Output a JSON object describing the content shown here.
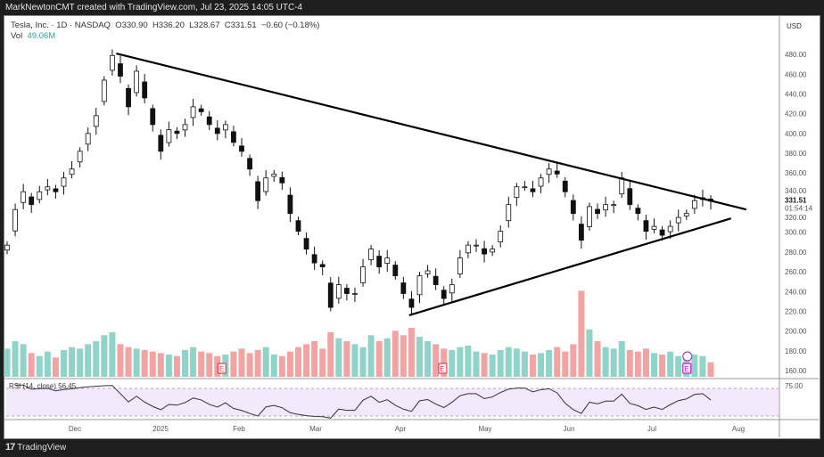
{
  "header": {
    "attribution": "MarkNewtonCMT created with TradingView.com, Jul 23, 2025 14:05 UTC-4"
  },
  "legend": {
    "symbol": "Tesla, Inc. · 1D · NASDAQ",
    "open": "O330.90",
    "high": "H336.20",
    "low": "L328.67",
    "close": "C331.51",
    "change": "−0.60 (−0.18%)",
    "vol_label": "Vol",
    "vol_value": "49.06M"
  },
  "footer": {
    "brand": "TradingView"
  },
  "chart_data": {
    "type": "candlestick",
    "currency": "USD",
    "ylim": [
      150,
      500
    ],
    "yticks": [
      160,
      180,
      200,
      220,
      240,
      260,
      280,
      300,
      320,
      340,
      360,
      380,
      400,
      420,
      440,
      460,
      480
    ],
    "last_price": "331.51",
    "countdown": "01:54:14",
    "xticks": [
      "Dec",
      "2025",
      "Feb",
      "Mar",
      "Apr",
      "May",
      "Jun",
      "Jul",
      "Aug"
    ],
    "closes": [
      287,
      323,
      341,
      328,
      341,
      346,
      341,
      355,
      364,
      382,
      400,
      418,
      454,
      479,
      458,
      427,
      463,
      436,
      409,
      382,
      404,
      400,
      409,
      427,
      422,
      409,
      400,
      409,
      391,
      382,
      364,
      332,
      355,
      359,
      350,
      319,
      301,
      283,
      269,
      265,
      224,
      247,
      238,
      238,
      265,
      283,
      265,
      274,
      256,
      238,
      224,
      256,
      261,
      247,
      233,
      247,
      274,
      287,
      287,
      278,
      283,
      301,
      328,
      346,
      346,
      341,
      355,
      364,
      359,
      341,
      319,
      292,
      326,
      319,
      328,
      328,
      355,
      328,
      319,
      301,
      306,
      297,
      306,
      315,
      319,
      332,
      335,
      331.51
    ],
    "volumes": [
      95,
      120,
      110,
      80,
      70,
      85,
      65,
      90,
      100,
      95,
      110,
      120,
      140,
      150,
      110,
      100,
      95,
      90,
      85,
      80,
      75,
      70,
      90,
      100,
      85,
      80,
      70,
      75,
      85,
      95,
      80,
      90,
      100,
      75,
      70,
      85,
      100,
      110,
      120,
      95,
      150,
      130,
      120,
      110,
      100,
      140,
      120,
      130,
      155,
      140,
      165,
      135,
      120,
      110,
      95,
      90,
      100,
      105,
      85,
      80,
      75,
      90,
      100,
      95,
      85,
      75,
      80,
      90,
      100,
      85,
      110,
      290,
      160,
      120,
      100,
      95,
      120,
      90,
      85,
      95,
      80,
      75,
      85,
      70,
      65,
      75,
      70,
      49
    ],
    "volume_colors": {
      "up": "#8fd3c9",
      "down": "#f4a3a3"
    },
    "rsi": {
      "label": "RSI (14, close)",
      "value": "56.45",
      "axis_label": "75.00",
      "band_color": "#f3e8fc",
      "line_color": "#333333"
    },
    "trendlines": [
      {
        "from_bar": 13.5,
        "from_price": 481,
        "to_bar": 91.4,
        "to_price": 323
      },
      {
        "from_bar": 49.7,
        "from_price": 216,
        "to_bar": 89.5,
        "to_price": 314
      }
    ],
    "earnings_markers": [
      {
        "bar": 26.5,
        "label": "E",
        "color": "#f23645"
      },
      {
        "bar": 53.8,
        "label": "E",
        "color": "#f23645"
      },
      {
        "bar": 84,
        "label": "E",
        "color": "#d500f9"
      }
    ]
  }
}
